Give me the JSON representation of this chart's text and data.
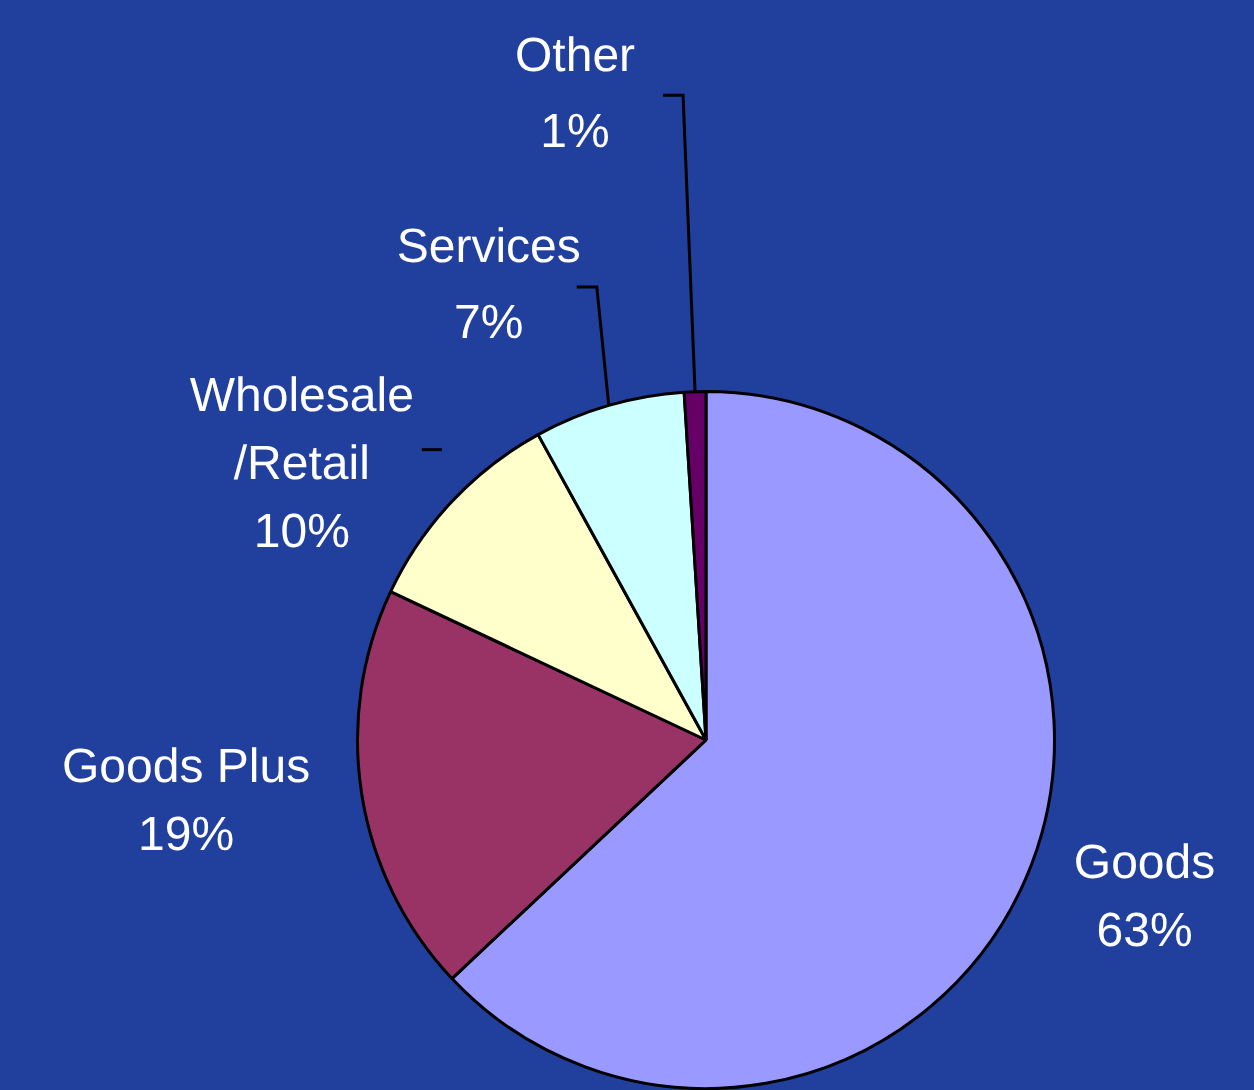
{
  "chart_data": {
    "type": "pie",
    "categories": [
      "Goods",
      "Goods Plus",
      "Wholesale /Retail",
      "Services",
      "Other"
    ],
    "values": [
      63,
      19,
      10,
      7,
      1
    ],
    "value_labels": [
      "63%",
      "19%",
      "10%",
      "7%",
      "1%"
    ],
    "colors": [
      "#9999ff",
      "#993366",
      "#ffffcc",
      "#ccffff",
      "#660066"
    ],
    "legend": false
  }
}
